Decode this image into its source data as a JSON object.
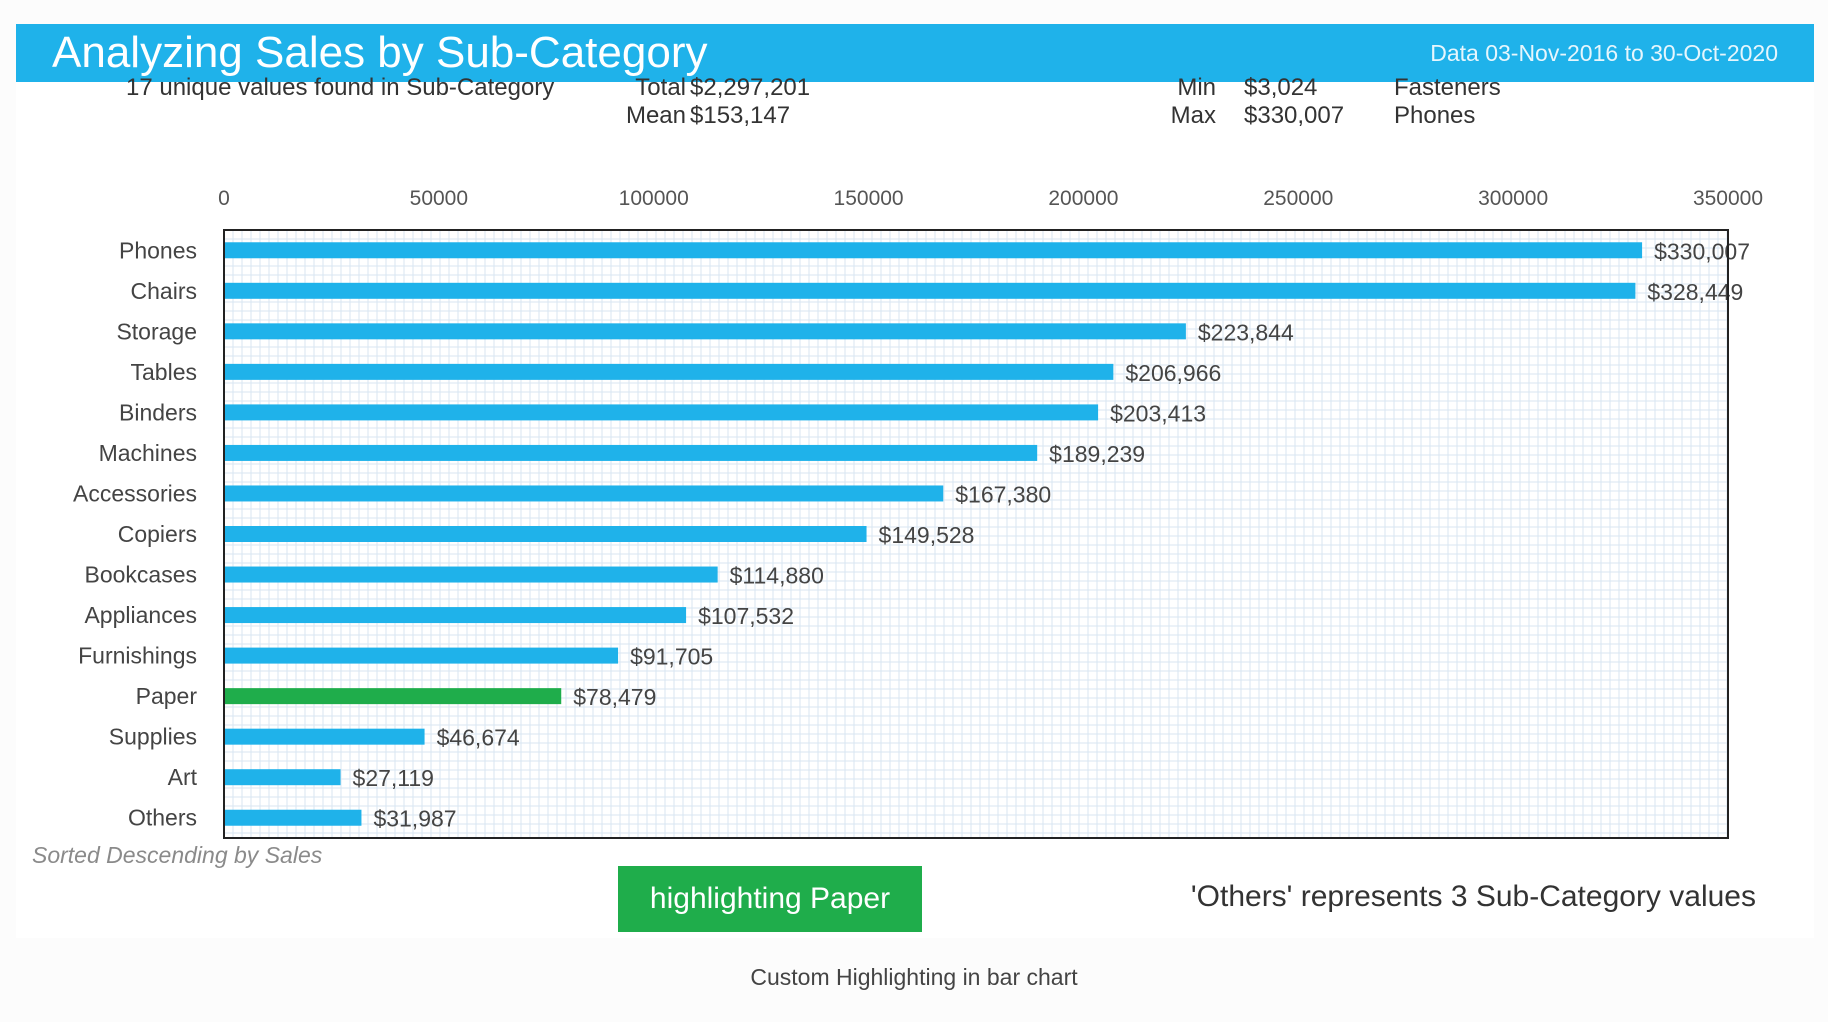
{
  "header": {
    "title": "Analyzing Sales by Sub-Category",
    "date_range": "Data 03-Nov-2016 to 30-Oct-2020"
  },
  "summary": {
    "unique_values": "17 unique values found in Sub-Category",
    "total_label": "Total",
    "total_value": "$2,297,201",
    "mean_label": "Mean",
    "mean_value": "$153,147",
    "min_label": "Min",
    "min_value": "$3,024",
    "min_category": "Fasteners",
    "max_label": "Max",
    "max_value": "$330,007",
    "max_category": "Phones"
  },
  "footer": {
    "sort_note": "Sorted Descending by Sales",
    "highlight_button": "highlighting Paper",
    "others_note": "'Others' represents 3 Sub-Category values"
  },
  "caption": "Custom Highlighting in bar chart",
  "colors": {
    "bar": "#1fb2ea",
    "highlight": "#1fad4b",
    "grid": "#d8e6f2",
    "banner": "#1fb2ea"
  },
  "chart_data": {
    "type": "bar",
    "orientation": "horizontal",
    "categories": [
      "Phones",
      "Chairs",
      "Storage",
      "Tables",
      "Binders",
      "Machines",
      "Accessories",
      "Copiers",
      "Bookcases",
      "Appliances",
      "Furnishings",
      "Paper",
      "Supplies",
      "Art",
      "Others"
    ],
    "values": [
      330007,
      328449,
      223844,
      206966,
      203413,
      189239,
      167380,
      149528,
      114880,
      107532,
      91705,
      78479,
      46674,
      27119,
      31987
    ],
    "data_labels": [
      "$330,007",
      "$328,449",
      "$223,844",
      "$206,966",
      "$203,413",
      "$189,239",
      "$167,380",
      "$149,528",
      "$114,880",
      "$107,532",
      "$91,705",
      "$78,479",
      "$46,674",
      "$27,119",
      "$31,987"
    ],
    "highlighted_category": "Paper",
    "xlim": [
      0,
      350000
    ],
    "x_ticks": [
      0,
      50000,
      100000,
      150000,
      200000,
      250000,
      300000,
      350000
    ],
    "x_tick_labels": [
      "0",
      "50000",
      "100000",
      "150000",
      "200000",
      "250000",
      "300000",
      "350000"
    ],
    "x_axis_position": "top",
    "grid": true,
    "legend": "none"
  }
}
